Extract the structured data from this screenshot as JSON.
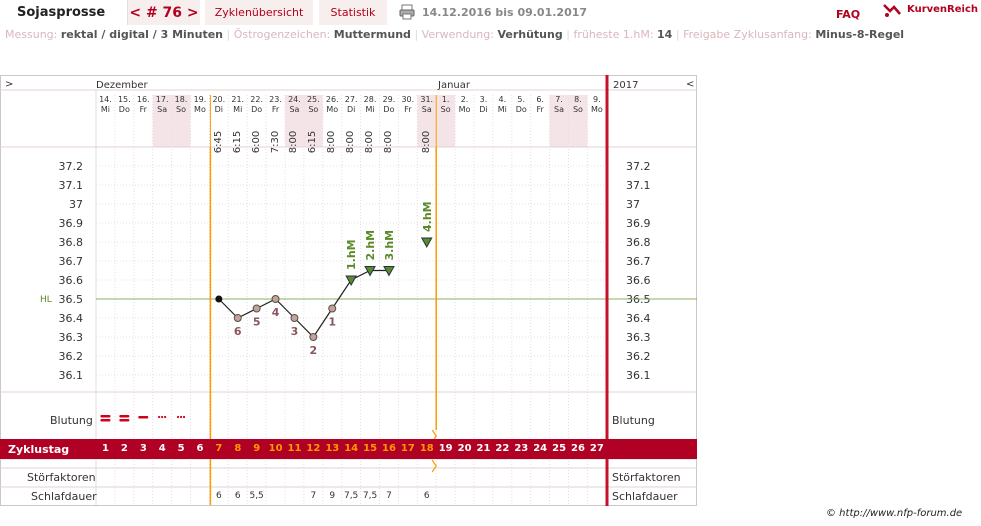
{
  "topbar": {
    "title": "Sojasprosse",
    "cycle": "< # 76 >",
    "overview": "Zyklenübersicht",
    "statistics": "Statistik",
    "date_range": "14.12.2016 bis 09.01.2017",
    "faq": "FAQ",
    "brand": "KurvenReich"
  },
  "meta": {
    "messung_k": "Messung:",
    "messung_v": "rektal / digital / 3 Minuten",
    "oestrogen_k": "Östrogenzeichen:",
    "oestrogen_v": "Muttermund",
    "verwendung_k": "Verwendung:",
    "verwendung_v": "Verhütung",
    "hm_k": "früheste 1.hM:",
    "hm_v": "14",
    "freigabe_k": "Freigabe Zyklusanfang:",
    "freigabe_v": "Minus-8-Regel"
  },
  "chart_header": {
    "nav_left": ">",
    "nav_right": "<",
    "month1": "Dezember",
    "month2": "Januar",
    "year": "2017"
  },
  "days": [
    {
      "d": "14.",
      "w": "Mi",
      "t": ""
    },
    {
      "d": "15.",
      "w": "Do",
      "t": ""
    },
    {
      "d": "16.",
      "w": "Fr",
      "t": ""
    },
    {
      "d": "17.",
      "w": "Sa",
      "t": ""
    },
    {
      "d": "18.",
      "w": "So",
      "t": ""
    },
    {
      "d": "19.",
      "w": "Mo",
      "t": ""
    },
    {
      "d": "20.",
      "w": "Di",
      "t": "6:45"
    },
    {
      "d": "21.",
      "w": "Mi",
      "t": "6:15"
    },
    {
      "d": "22.",
      "w": "Do",
      "t": "6:00"
    },
    {
      "d": "23.",
      "w": "Fr",
      "t": "7:30"
    },
    {
      "d": "24.",
      "w": "Sa",
      "t": "8:00"
    },
    {
      "d": "25.",
      "w": "So",
      "t": "6:15"
    },
    {
      "d": "26.",
      "w": "Mo",
      "t": "8:00"
    },
    {
      "d": "27.",
      "w": "Di",
      "t": "8:00"
    },
    {
      "d": "28.",
      "w": "Mi",
      "t": "8:00"
    },
    {
      "d": "29.",
      "w": "Do",
      "t": "8:00"
    },
    {
      "d": "30.",
      "w": "Fr",
      "t": ""
    },
    {
      "d": "31.",
      "w": "Sa",
      "t": "8:00"
    },
    {
      "d": "1.",
      "w": "So",
      "t": ""
    },
    {
      "d": "2.",
      "w": "Mo",
      "t": ""
    },
    {
      "d": "3.",
      "w": "Di",
      "t": ""
    },
    {
      "d": "4.",
      "w": "Mi",
      "t": ""
    },
    {
      "d": "5.",
      "w": "Do",
      "t": ""
    },
    {
      "d": "6.",
      "w": "Fr",
      "t": ""
    },
    {
      "d": "7.",
      "w": "Sa",
      "t": ""
    },
    {
      "d": "8.",
      "w": "So",
      "t": ""
    },
    {
      "d": "9.",
      "w": "Mo",
      "t": ""
    }
  ],
  "chart_data": {
    "type": "line",
    "ylabels": [
      "37.2",
      "37.1",
      "37",
      "36.9",
      "36.8",
      "36.7",
      "36.6",
      "36.5",
      "36.4",
      "36.3",
      "36.2",
      "36.1"
    ],
    "ylim": [
      36.0,
      37.3
    ],
    "hl_label": "HL",
    "hl_value": 36.5,
    "temps": [
      null,
      null,
      null,
      null,
      null,
      null,
      36.5,
      36.4,
      36.45,
      36.5,
      36.4,
      36.3,
      36.45,
      36.6,
      36.65,
      36.65,
      null,
      36.8
    ],
    "down_labels": {
      "7": "6",
      "8": "5",
      "9": "4",
      "10": "3",
      "11": "2",
      "12": "1"
    },
    "hm_labels": {
      "13": "1.hM",
      "14": "2.hM",
      "15": "3.hM",
      "17": "4.hM"
    }
  },
  "rows": {
    "blutung": "Blutung",
    "zyklustag": "Zyklustag",
    "stoerfaktoren": "Störfaktoren",
    "schlafdauer": "Schlafdauer"
  },
  "cycle_days": [
    "1",
    "2",
    "3",
    "4",
    "5",
    "6",
    "7",
    "8",
    "9",
    "10",
    "11",
    "12",
    "13",
    "14",
    "15",
    "16",
    "17",
    "18",
    "19",
    "20",
    "21",
    "22",
    "23",
    "24",
    "25",
    "26",
    "27"
  ],
  "sleep": [
    "",
    "",
    "",
    "",
    "",
    "",
    "6",
    "6",
    "5,5",
    "",
    "",
    "7",
    "9",
    "7,5",
    "7,5",
    "7",
    "",
    "6",
    "",
    "",
    "",
    "",
    "",
    "",
    "",
    "",
    ""
  ],
  "copyright": "© http://www.nfp-forum.de",
  "colors": {
    "accent": "#b00023",
    "orange": "#ff9900",
    "green": "#5a8a2a",
    "point_red": "#8a5560"
  }
}
